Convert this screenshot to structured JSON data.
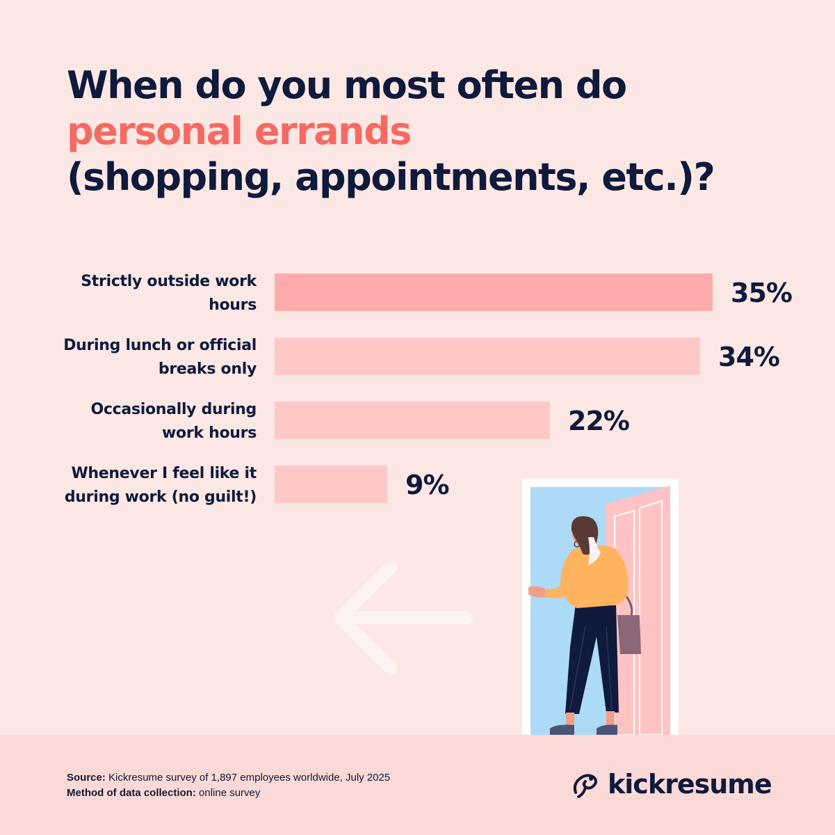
{
  "title": {
    "line1": "When do you most often do",
    "line2_highlight": "personal errands",
    "line3": "(shopping, appointments, etc.)?"
  },
  "chart_data": {
    "type": "bar",
    "orientation": "horizontal",
    "categories": [
      [
        "Strictly outside work",
        "hours"
      ],
      [
        "During lunch or official",
        "breaks only"
      ],
      [
        "Occasionally during",
        "work hours"
      ],
      [
        "Whenever I feel like it",
        "during work (no guilt!)"
      ]
    ],
    "values": [
      35,
      34,
      22,
      9
    ],
    "value_labels": [
      "35%",
      "34%",
      "22%",
      "9%"
    ],
    "unit": "%",
    "xlim": [
      0,
      35
    ],
    "grid": false
  },
  "footer": {
    "source_label": "Source:",
    "source_text": " Kickresume survey of 1,897 employees worldwide, July 2025",
    "method_label": "Method of data collection:",
    "method_text": " online survey"
  },
  "brand": {
    "name": "kickresume",
    "icon": "kickresume-logo-icon"
  },
  "colors": {
    "background": "#fbe8e5",
    "navy": "#0f1a3c",
    "highlight": "#f56a62",
    "bar_top": "#ffabab",
    "bar": "#ffc8c6",
    "footer_band": "#fbd9d6"
  }
}
